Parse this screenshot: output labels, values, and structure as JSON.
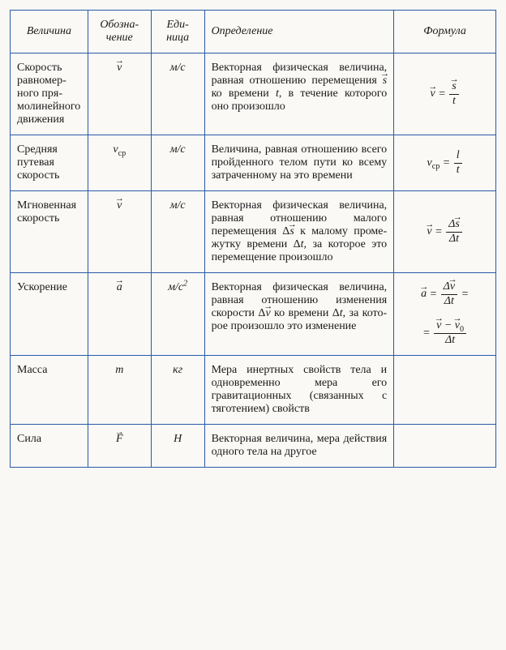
{
  "table": {
    "border_color": "#2a5aa8",
    "background_color": "#faf9f6",
    "text_color": "#1a1a1a",
    "font_family": "Georgia serif",
    "column_widths_percent": [
      16,
      13,
      11,
      39,
      21
    ],
    "headers": {
      "velichina": "Величина",
      "obozn": "Обозна­чение",
      "ed": "Еди­ница",
      "opred": "Определение",
      "formula": "Формула"
    },
    "rows": [
      {
        "velichina": "Скорость равномер­ного пря­молиней­ного дви­жения",
        "obozn_html": "<span class=\"vec\">v</span>",
        "ed": "м/с",
        "opred_html": "Векторная физическая ве­личина, равная отноше­нию перемещения <span class=\"nobr\"><span class=\"vec\" style=\"font-style:italic\">s</span></span> ко времени <i>t</i>, в течение кото­рого оно произошло",
        "formula_html": "<span class=\"vec\">v</span> = <span class=\"frac\"><span class=\"num\"><span class=\"vec\">s</span></span><span class=\"den\">t</span></span>"
      },
      {
        "velichina": "Средняя путевая скорость",
        "obozn_html": "v<sub>ср</sub>",
        "ed": "м/с",
        "opred_html": "Величина, равная отноше­нию всего пройденного те­лом пути ко всему затра­ченному на это времени",
        "formula_html": "v<sub>ср</sub> = <span class=\"frac\"><span class=\"num\">l</span><span class=\"den\">t</span></span>"
      },
      {
        "velichina": "Мгновен­ная скорость",
        "obozn_html": "<span class=\"vec\">v</span>",
        "ed": "м/с",
        "opred_html": "Векторная физическая ве­личина, равная отноше­нию малого перемеще­ния <span class=\"nobr\">Δ<span class=\"vec\" style=\"font-style:italic\">s</span></span> к малому проме­жутку времени Δ<i>t</i>, за ко­торое это перемещение произошло",
        "formula_html": "<span class=\"vec\">v</span> = <span class=\"frac\"><span class=\"num\">Δ<span class=\"vec\">s</span></span><span class=\"den\">Δt</span></span>"
      },
      {
        "velichina": "Ускоре­ние",
        "obozn_html": "<span class=\"vec\">a</span>",
        "ed_html": "м/с<sup>2</sup>",
        "opred_html": "Векторная физическая ве­личина, равная отноше­нию изменения скорости <span class=\"nobr\">Δ<span class=\"vec\" style=\"font-style:italic\">v</span></span> ко времени Δ<i>t</i>, за кото­рое произошло это изме­нение",
        "formula_html": "<span class=\"vec\">a</span> = <span class=\"frac\"><span class=\"num\">Δ<span class=\"vec\">v</span></span><span class=\"den\">Δt</span></span> =<br><br>= <span class=\"frac\"><span class=\"num\"><span class=\"vec\">v</span> − <span class=\"vec\">v</span><sub>0</sub></span><span class=\"den\">Δt</span></span>"
      },
      {
        "velichina": "Масса",
        "obozn_html": "m",
        "ed": "кг",
        "opred_html": "Мера инертных свойств тела и одновременно ме­ра его гравитационных (связанных с тяготением) свойств",
        "formula_html": ""
      },
      {
        "velichina": "Сила",
        "obozn_html": "<span class=\"vec\">F</span>",
        "ed": "Н",
        "opred_html": "Векторная величина, мера действия одного тела на другое",
        "formula_html": ""
      }
    ]
  }
}
